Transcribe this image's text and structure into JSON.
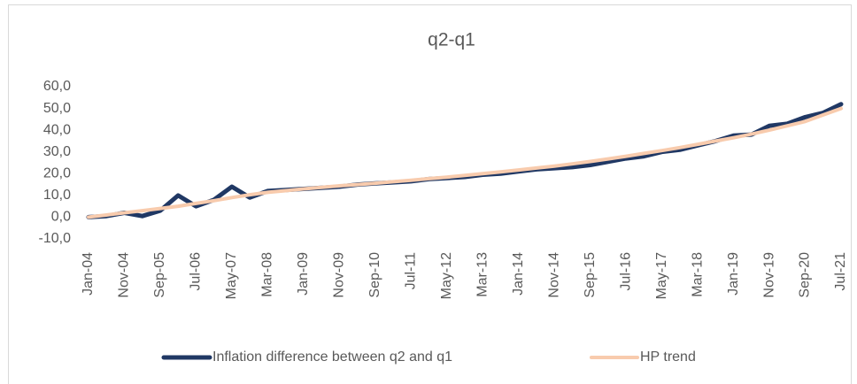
{
  "chart_data": {
    "type": "line",
    "title": "q2-q1",
    "categories": [
      "Jan-04",
      null,
      "Nov-04",
      null,
      "Sep-05",
      null,
      "Jul-06",
      null,
      "May-07",
      null,
      "Mar-08",
      null,
      "Jan-09",
      null,
      "Nov-09",
      null,
      "Sep-10",
      null,
      "Jul-11",
      null,
      "May-12",
      null,
      "Mar-13",
      null,
      "Jan-14",
      null,
      "Nov-14",
      null,
      "Sep-15",
      null,
      "Jul-16",
      null,
      "May-17",
      null,
      "Mar-18",
      null,
      "Jan-19",
      null,
      "Nov-19",
      null,
      "Sep-20",
      null,
      "Jul-21"
    ],
    "series": [
      {
        "name": "Inflation difference between q2 and q1",
        "color": "#203864",
        "values": [
          0,
          0.5,
          2,
          0.5,
          3,
          10,
          5,
          8,
          14,
          9,
          12,
          12.5,
          13,
          13.5,
          14,
          15,
          15.5,
          16,
          16.5,
          17.5,
          18,
          18.5,
          19.5,
          20,
          21,
          22,
          22.5,
          23,
          24,
          25.5,
          27,
          28,
          30,
          31,
          33,
          35,
          37.5,
          38,
          42,
          43,
          46,
          48,
          52
        ]
      },
      {
        "name": "HP trend",
        "color": "#f8cbad",
        "values": [
          0,
          1,
          2,
          3,
          4,
          5,
          6.3,
          7.6,
          9,
          10.3,
          11.4,
          12.2,
          13,
          13.7,
          14.4,
          15,
          15.6,
          16.3,
          17,
          17.7,
          18.4,
          19.2,
          20,
          20.8,
          21.7,
          22.6,
          23.5,
          24.5,
          25.6,
          26.8,
          28,
          29.3,
          30.6,
          32,
          33.5,
          35,
          36.5,
          38.2,
          40,
          42,
          44,
          47,
          50
        ]
      }
    ],
    "ylim": [
      -10,
      60
    ],
    "yticks": [
      {
        "value": -10,
        "label": "-10,0"
      },
      {
        "value": 0,
        "label": "0,0"
      },
      {
        "value": 10,
        "label": "10,0"
      },
      {
        "value": 20,
        "label": "20,0"
      },
      {
        "value": 30,
        "label": "30,0"
      },
      {
        "value": 40,
        "label": "40,0"
      },
      {
        "value": 50,
        "label": "50,0"
      },
      {
        "value": 60,
        "label": "60,0"
      }
    ],
    "grid": false
  }
}
